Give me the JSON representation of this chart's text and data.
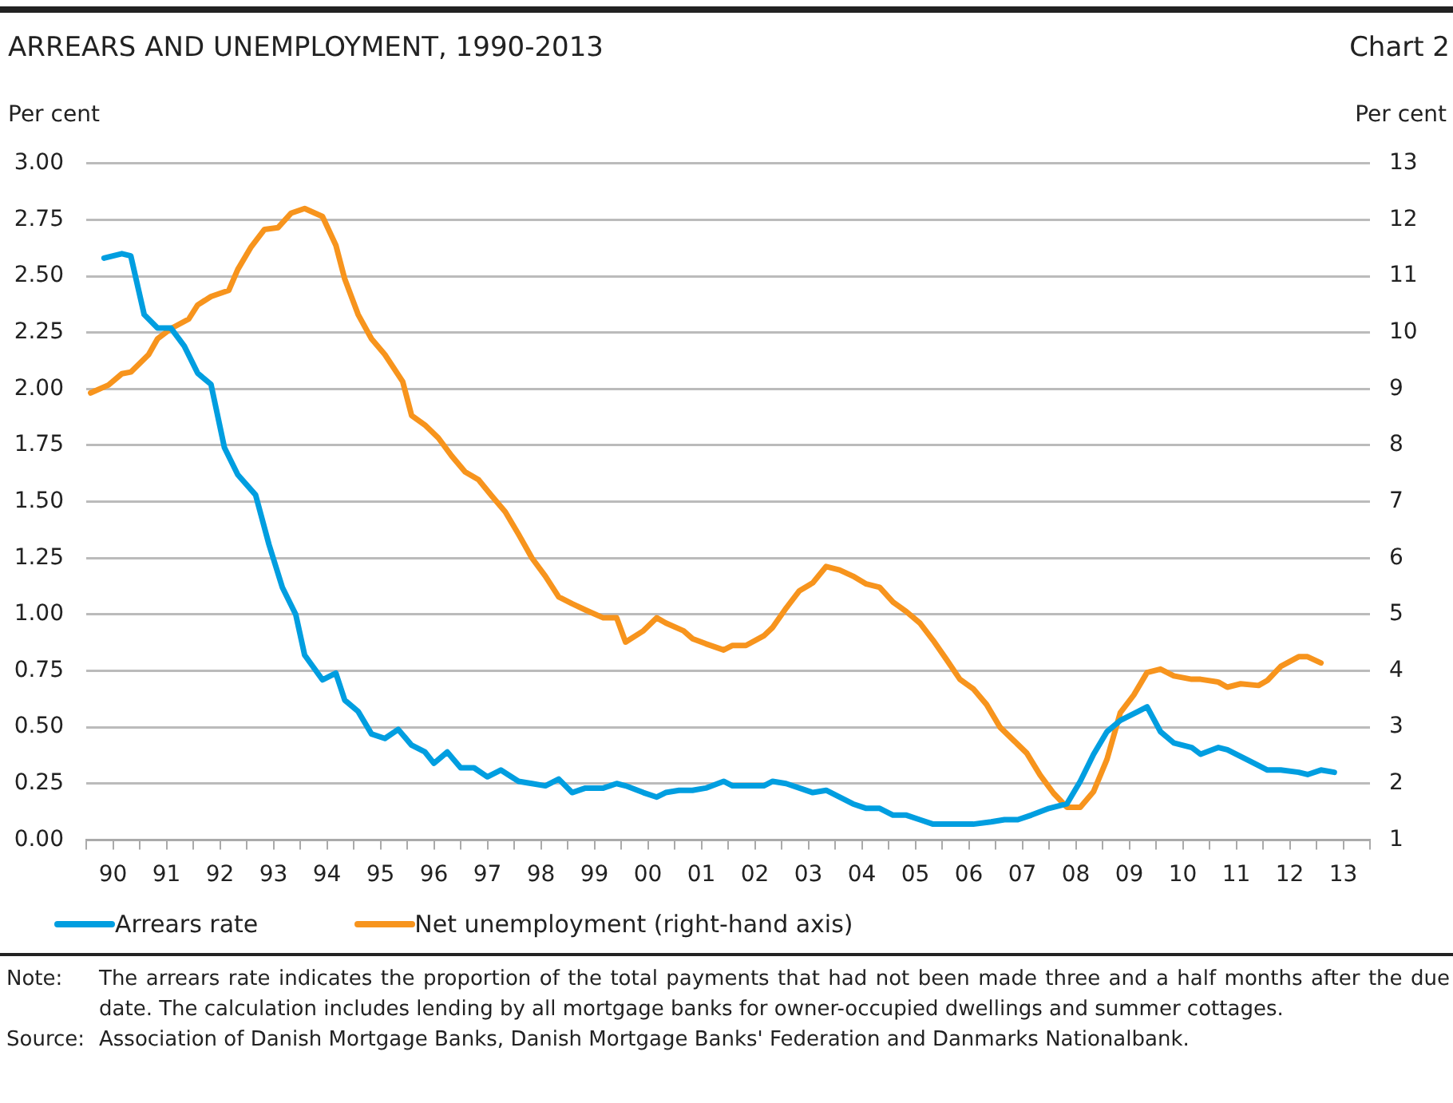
{
  "chart_data": {
    "type": "line",
    "title": "ARREARS AND UNEMPLOYMENT, 1990-2013",
    "ylabel": "Per cent",
    "y2label": "Per cent",
    "annotations": [
      "Chart 2",
      "Note:\tThe arrears rate indicates the proportion of the total payments that had not been made three and a half months after the due date. The calculation includes lending by all mortgage banks for owner-occupied dwellings and summer cottages.",
      "Source:\tAssociation of Danish Mortgage Banks, Danish Mortgage Banks' Federation and Danmarks Nationalbank."
    ],
    "xlim": [
      "1990-01",
      "2014-01"
    ],
    "xticks": [
      {
        "value": "1990-01",
        "label": null
      },
      {
        "value": "1990-07",
        "label": "90"
      },
      {
        "value": "1991-01",
        "label": null
      },
      {
        "value": "1991-07",
        "label": "91"
      },
      {
        "value": "1992-01",
        "label": null
      },
      {
        "value": "1992-07",
        "label": "92"
      },
      {
        "value": "1993-01",
        "label": null
      },
      {
        "value": "1993-07",
        "label": "93"
      },
      {
        "value": "1994-01",
        "label": null
      },
      {
        "value": "1994-07",
        "label": "94"
      },
      {
        "value": "1995-01",
        "label": null
      },
      {
        "value": "1995-07",
        "label": "95"
      },
      {
        "value": "1996-01",
        "label": null
      },
      {
        "value": "1996-07",
        "label": "96"
      },
      {
        "value": "1997-01",
        "label": null
      },
      {
        "value": "1997-07",
        "label": "97"
      },
      {
        "value": "1998-01",
        "label": null
      },
      {
        "value": "1998-07",
        "label": "98"
      },
      {
        "value": "1999-01",
        "label": null
      },
      {
        "value": "1999-07",
        "label": "99"
      },
      {
        "value": "2000-01",
        "label": null
      },
      {
        "value": "2000-07",
        "label": "00"
      },
      {
        "value": "2001-01",
        "label": null
      },
      {
        "value": "2001-07",
        "label": "01"
      },
      {
        "value": "2002-01",
        "label": null
      },
      {
        "value": "2002-07",
        "label": "02"
      },
      {
        "value": "2003-01",
        "label": null
      },
      {
        "value": "2003-07",
        "label": "03"
      },
      {
        "value": "2004-01",
        "label": null
      },
      {
        "value": "2004-07",
        "label": "04"
      },
      {
        "value": "2005-01",
        "label": null
      },
      {
        "value": "2005-07",
        "label": "05"
      },
      {
        "value": "2006-01",
        "label": null
      },
      {
        "value": "2006-07",
        "label": "06"
      },
      {
        "value": "2007-01",
        "label": null
      },
      {
        "value": "2007-07",
        "label": "07"
      },
      {
        "value": "2008-01",
        "label": null
      },
      {
        "value": "2008-07",
        "label": "08"
      },
      {
        "value": "2009-01",
        "label": null
      },
      {
        "value": "2009-07",
        "label": "09"
      },
      {
        "value": "2010-01",
        "label": null
      },
      {
        "value": "2010-07",
        "label": "10"
      },
      {
        "value": "2011-01",
        "label": null
      },
      {
        "value": "2011-07",
        "label": "11"
      },
      {
        "value": "2012-01",
        "label": null
      },
      {
        "value": "2012-07",
        "label": "12"
      },
      {
        "value": "2013-01",
        "label": null
      },
      {
        "value": "2013-07",
        "label": "13"
      },
      {
        "value": "2014-01",
        "label": null
      }
    ],
    "ylim": [
      0,
      3
    ],
    "yticks": [
      {
        "value": 0,
        "label": "0.00"
      },
      {
        "value": 0.25,
        "label": "0.25"
      },
      {
        "value": 0.5,
        "label": "0.50"
      },
      {
        "value": 0.75,
        "label": "0.75"
      },
      {
        "value": 1,
        "label": "1.00"
      },
      {
        "value": 1.25,
        "label": "1.25"
      },
      {
        "value": 1.5,
        "label": "1.50"
      },
      {
        "value": 1.75,
        "label": "1.75"
      },
      {
        "value": 2,
        "label": "2.00"
      },
      {
        "value": 2.25,
        "label": "2.25"
      },
      {
        "value": 2.5,
        "label": "2.50"
      },
      {
        "value": 2.75,
        "label": "2.75"
      },
      {
        "value": 3,
        "label": "3.00"
      }
    ],
    "y2lim": [
      1,
      13
    ],
    "y2ticks": [
      1,
      2,
      3,
      4,
      5,
      6,
      7,
      8,
      9,
      10,
      11,
      12,
      13
    ],
    "grid": "y",
    "legend": "bottom left",
    "marker": "none",
    "line_style": "solid",
    "series": [
      {
        "name": "Arrears rate",
        "color": "#009ee0",
        "x": [
          "1990-05",
          "1990-09",
          "1990-11",
          "1991-02",
          "1991-05",
          "1991-08",
          "1991-11",
          "1992-02",
          "1992-05",
          "1992-08",
          "1992-11",
          "1993-03",
          "1993-06",
          "1993-09",
          "1993-12",
          "1994-02",
          "1994-06",
          "1994-09",
          "1994-11",
          "1995-02",
          "1995-05",
          "1995-08",
          "1995-11",
          "1996-02",
          "1996-05",
          "1996-07",
          "1996-10",
          "1997-01",
          "1997-04",
          "1997-07",
          "1997-10",
          "1998-02",
          "1998-05",
          "1998-08",
          "1998-11",
          "1999-02",
          "1999-05",
          "1999-09",
          "1999-12",
          "2000-02",
          "2000-06",
          "2000-09",
          "2000-11",
          "2001-02",
          "2001-05",
          "2001-08",
          "2001-12",
          "2002-02",
          "2002-05",
          "2002-09",
          "2002-11",
          "2003-02",
          "2003-05",
          "2003-08",
          "2003-11",
          "2004-02",
          "2004-05",
          "2004-08",
          "2004-11",
          "2005-02",
          "2005-05",
          "2005-08",
          "2005-11",
          "2006-02",
          "2006-05",
          "2006-08",
          "2006-12",
          "2007-03",
          "2007-06",
          "2007-09",
          "2008-01",
          "2008-05",
          "2008-08",
          "2008-11",
          "2009-02",
          "2009-05",
          "2009-09",
          "2009-11",
          "2010-02",
          "2010-05",
          "2010-09",
          "2010-11",
          "2011-03",
          "2011-05",
          "2011-09",
          "2011-12",
          "2012-02",
          "2012-05",
          "2012-09",
          "2012-11",
          "2013-02",
          "2013-05"
        ],
        "values": [
          2.58,
          2.6,
          2.59,
          2.33,
          2.27,
          2.27,
          2.19,
          2.07,
          2.02,
          1.74,
          1.62,
          1.53,
          1.31,
          1.12,
          1.0,
          0.82,
          0.71,
          0.74,
          0.62,
          0.57,
          0.47,
          0.45,
          0.49,
          0.42,
          0.39,
          0.34,
          0.39,
          0.32,
          0.32,
          0.28,
          0.31,
          0.26,
          0.25,
          0.24,
          0.27,
          0.21,
          0.23,
          0.23,
          0.25,
          0.24,
          0.21,
          0.19,
          0.21,
          0.22,
          0.22,
          0.23,
          0.26,
          0.24,
          0.24,
          0.24,
          0.26,
          0.25,
          0.23,
          0.21,
          0.22,
          0.19,
          0.16,
          0.14,
          0.14,
          0.11,
          0.11,
          0.09,
          0.07,
          0.07,
          0.07,
          0.07,
          0.08,
          0.09,
          0.09,
          0.11,
          0.14,
          0.16,
          0.26,
          0.38,
          0.48,
          0.53,
          0.57,
          0.59,
          0.48,
          0.43,
          0.41,
          0.38,
          0.41,
          0.4,
          0.36,
          0.33,
          0.31,
          0.31,
          0.3,
          0.29,
          0.31,
          0.3
        ]
      },
      {
        "name": "Net unemployment (right-hand axis)",
        "color": "#f7941d",
        "axis": "y2",
        "x": [
          "1990-02",
          "1990-06",
          "1990-09",
          "1990-11",
          "1991-03",
          "1991-05",
          "1991-08",
          "1991-12",
          "1992-02",
          "1992-05",
          "1992-09",
          "1992-11",
          "1993-02",
          "1993-05",
          "1993-08",
          "1993-11",
          "1994-02",
          "1994-06",
          "1994-09",
          "1994-11",
          "1995-02",
          "1995-05",
          "1995-08",
          "1995-12",
          "1996-02",
          "1996-05",
          "1996-08",
          "1996-11",
          "1997-02",
          "1997-05",
          "1997-08",
          "1997-11",
          "1998-02",
          "1998-05",
          "1998-08",
          "1998-11",
          "1999-02",
          "1999-05",
          "1999-09",
          "1999-12",
          "2000-02",
          "2000-06",
          "2000-09",
          "2000-11",
          "2001-03",
          "2001-05",
          "2001-08",
          "2001-12",
          "2002-02",
          "2002-05",
          "2002-09",
          "2002-11",
          "2003-02",
          "2003-05",
          "2003-08",
          "2003-11",
          "2004-02",
          "2004-05",
          "2004-08",
          "2004-11",
          "2005-02",
          "2005-05",
          "2005-08",
          "2005-11",
          "2006-02",
          "2006-05",
          "2006-08",
          "2006-11",
          "2007-02",
          "2007-05",
          "2007-08",
          "2007-11",
          "2008-02",
          "2008-05",
          "2008-08",
          "2008-11",
          "2009-02",
          "2009-05",
          "2009-08",
          "2009-11",
          "2010-02",
          "2010-05",
          "2010-09",
          "2010-11",
          "2011-03",
          "2011-05",
          "2011-08",
          "2011-12",
          "2012-02",
          "2012-05",
          "2012-09",
          "2012-11",
          "2013-02"
        ],
        "values": [
          8.93,
          9.07,
          9.27,
          9.3,
          9.61,
          9.89,
          10.07,
          10.24,
          10.49,
          10.64,
          10.75,
          11.12,
          11.52,
          11.83,
          11.86,
          12.12,
          12.2,
          12.06,
          11.55,
          10.95,
          10.32,
          9.89,
          9.61,
          9.13,
          8.53,
          8.36,
          8.13,
          7.81,
          7.53,
          7.39,
          7.1,
          6.82,
          6.42,
          6.0,
          5.68,
          5.31,
          5.19,
          5.08,
          4.94,
          4.94,
          4.51,
          4.71,
          4.94,
          4.85,
          4.71,
          4.57,
          4.48,
          4.37,
          4.45,
          4.45,
          4.62,
          4.77,
          5.11,
          5.42,
          5.56,
          5.85,
          5.79,
          5.68,
          5.54,
          5.48,
          5.22,
          5.05,
          4.85,
          4.54,
          4.2,
          3.85,
          3.68,
          3.4,
          3.0,
          2.77,
          2.54,
          2.15,
          1.83,
          1.58,
          1.58,
          1.86,
          2.43,
          3.26,
          3.57,
          3.97,
          4.03,
          3.91,
          3.85,
          3.85,
          3.8,
          3.71,
          3.77,
          3.74,
          3.83,
          4.08,
          4.25,
          4.25,
          4.14
        ]
      }
    ]
  }
}
